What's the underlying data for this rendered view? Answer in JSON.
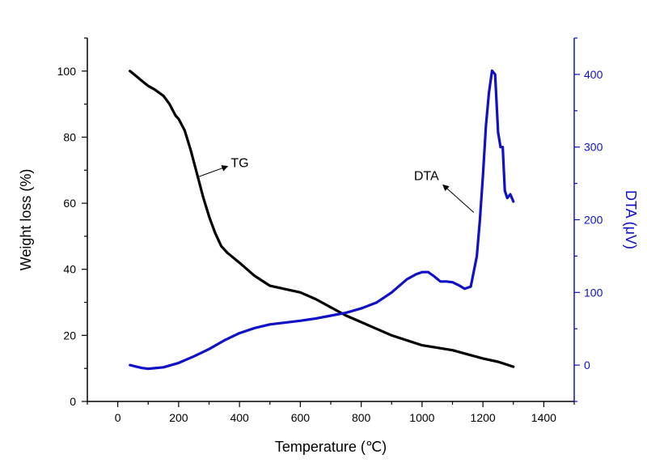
{
  "chart_data": {
    "type": "line",
    "xlabel": "Temperature (℃)",
    "ylabel_left": "Weight loss (%)",
    "ylabel_right": "DTA (μV)",
    "xlim": [
      -100,
      1500
    ],
    "ylim_left": [
      0,
      110
    ],
    "ylim_right": [
      -50,
      450
    ],
    "xticks": [
      0,
      200,
      400,
      600,
      800,
      1000,
      1200,
      1400
    ],
    "yticks_left": [
      0,
      20,
      40,
      60,
      80,
      100
    ],
    "yticks_right": [
      0,
      100,
      200,
      300,
      400
    ],
    "grid": false,
    "colors": {
      "TG": "#000000",
      "DTA": "#1010c8"
    },
    "annotations": [
      {
        "text": "TG",
        "series": "TG",
        "point": [
          265,
          68
        ]
      },
      {
        "text": "DTA",
        "series": "DTA",
        "point": [
          1170,
          210
        ]
      }
    ],
    "series": [
      {
        "name": "TG",
        "axis": "left",
        "x": [
          40,
          60,
          80,
          100,
          120,
          150,
          170,
          190,
          200,
          220,
          240,
          260,
          280,
          300,
          320,
          340,
          360,
          400,
          450,
          500,
          550,
          600,
          650,
          700,
          750,
          800,
          850,
          900,
          1000,
          1100,
          1200,
          1250,
          1300
        ],
        "y": [
          100,
          98.5,
          97,
          95.5,
          94.5,
          92.5,
          90,
          86.5,
          85.5,
          82,
          76,
          69,
          62,
          56,
          51,
          47,
          45,
          42,
          38,
          35,
          34,
          33,
          31,
          28.5,
          26,
          24,
          22,
          20,
          17,
          15.5,
          13,
          12,
          10.5
        ]
      },
      {
        "name": "DTA",
        "axis": "right",
        "x": [
          40,
          60,
          80,
          100,
          150,
          200,
          250,
          300,
          350,
          400,
          450,
          500,
          600,
          650,
          700,
          750,
          800,
          850,
          900,
          950,
          980,
          1000,
          1020,
          1040,
          1060,
          1080,
          1100,
          1120,
          1140,
          1160,
          1180,
          1190,
          1200,
          1210,
          1220,
          1230,
          1240,
          1250,
          1258,
          1265,
          1272,
          1280,
          1290,
          1300
        ],
        "y": [
          0,
          -2,
          -4,
          -5,
          -3,
          3,
          12,
          22,
          34,
          44,
          51,
          56,
          61,
          64,
          68,
          72,
          78,
          86,
          100,
          118,
          125,
          128,
          128,
          122,
          115,
          115,
          114,
          110,
          105,
          108,
          150,
          200,
          260,
          330,
          375,
          405,
          400,
          320,
          300,
          300,
          240,
          230,
          235,
          225
        ]
      }
    ]
  }
}
